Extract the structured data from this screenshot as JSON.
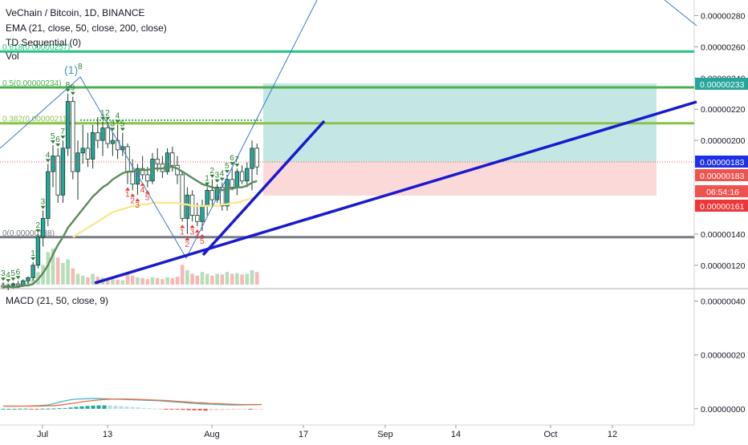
{
  "header": {
    "symbol": "VeChain / Bitcoin, 1D, BINANCE",
    "ema": "EMA (21, close, 50, close, 200, close)",
    "td": "TD Sequential (0)",
    "vol": "Vol",
    "macd": "MACD (21, 50, close, 9)"
  },
  "colors": {
    "up": "#26a69a",
    "down": "#ef5350",
    "ema21": "#5b8a5b",
    "ema50": "#f7e98e",
    "fib_green": "#4caf50",
    "fib_top": "#26c281",
    "trendline": "#1a1acd",
    "macd_line": "#3fb8c8",
    "signal_line": "#f06a3c",
    "profit_zone": "#b2dfdb",
    "loss_zone": "#fcd5d5",
    "price_badge": "#1e2fe8",
    "target_badge": "#26a69a",
    "stop_badge": "#ef3535"
  },
  "price_axis": {
    "ticks": [
      "0.00000280",
      "0.00000260",
      "0.00000240",
      "0.00000220",
      "0.00000200",
      "0.00000140",
      "0.00000120"
    ],
    "badges": {
      "target": "0.00000233",
      "last": "0.00000183",
      "entry": "0.00000183",
      "countdown": "06:54:16",
      "stop": "0.00000161"
    }
  },
  "macd_axis": {
    "ticks": [
      "0.00000040",
      "0.00000020",
      "0.00000000"
    ]
  },
  "time_axis": {
    "labels": [
      "Jul",
      "13",
      "Aug",
      "17",
      "Sep",
      "14",
      "Oct",
      "12"
    ]
  },
  "fib_levels": [
    {
      "label": "0.618(0.00000257)",
      "value": 2.57e-06
    },
    {
      "label": "0.5(0.00000234)",
      "value": 2.34e-06
    },
    {
      "label": "0.382(0.00000211)",
      "value": 2.11e-06
    },
    {
      "label": "0(0.00000138)",
      "value": 1.38e-06
    }
  ],
  "td_markers": {
    "peak_label": "(1)",
    "peak_count": "8",
    "up_counts": [
      "3",
      "4",
      "5",
      "6",
      "1",
      "2",
      "3",
      "4",
      "5",
      "6",
      "7",
      "8",
      "9",
      "1",
      "2",
      "3",
      "4",
      "5",
      "1",
      "2",
      "3",
      "4",
      "5",
      "6",
      "7"
    ],
    "down_counts": [
      "1",
      "2",
      "3",
      "4",
      "5",
      "1",
      "2",
      "3",
      "4",
      "5"
    ]
  },
  "chart_data": {
    "type": "candlestick",
    "symbol": "VET/BTC",
    "interval": "1D",
    "exchange": "BINANCE",
    "price_range": [
      1.05e-06,
      2.9e-06
    ],
    "last_price": 1.83e-06,
    "position_tool": {
      "entry": 1.83e-06,
      "target": 2.33e-06,
      "stop": 1.61e-06
    },
    "candles": [
      {
        "o": 1.07e-06,
        "h": 1.09e-06,
        "l": 1.05e-06,
        "c": 1.06e-06
      },
      {
        "o": 1.06e-06,
        "h": 1.08e-06,
        "l": 1.04e-06,
        "c": 1.07e-06
      },
      {
        "o": 1.07e-06,
        "h": 1.09e-06,
        "l": 1.05e-06,
        "c": 1.08e-06
      },
      {
        "o": 1.08e-06,
        "h": 1.1e-06,
        "l": 1.06e-06,
        "c": 1.07e-06
      },
      {
        "o": 1.07e-06,
        "h": 1.11e-06,
        "l": 1.06e-06,
        "c": 1.1e-06
      },
      {
        "o": 1.1e-06,
        "h": 1.13e-06,
        "l": 1.08e-06,
        "c": 1.12e-06
      },
      {
        "o": 1.12e-06,
        "h": 1.22e-06,
        "l": 1.1e-06,
        "c": 1.2e-06
      },
      {
        "o": 1.2e-06,
        "h": 1.4e-06,
        "l": 1.18e-06,
        "c": 1.38e-06
      },
      {
        "o": 1.38e-06,
        "h": 1.55e-06,
        "l": 1.32e-06,
        "c": 1.5e-06
      },
      {
        "o": 1.5e-06,
        "h": 1.85e-06,
        "l": 1.45e-06,
        "c": 1.8e-06
      },
      {
        "o": 1.8e-06,
        "h": 1.97e-06,
        "l": 1.7e-06,
        "c": 1.9e-06
      },
      {
        "o": 1.9e-06,
        "h": 1.95e-06,
        "l": 1.6e-06,
        "c": 1.65e-06
      },
      {
        "o": 1.65e-06,
        "h": 2e-06,
        "l": 1.6e-06,
        "c": 1.95e-06
      },
      {
        "o": 1.95e-06,
        "h": 2.3e-06,
        "l": 1.9e-06,
        "c": 2.25e-06
      },
      {
        "o": 2.25e-06,
        "h": 2.28e-06,
        "l": 1.75e-06,
        "c": 1.8e-06
      },
      {
        "o": 1.8e-06,
        "h": 2e-06,
        "l": 1.62e-06,
        "c": 1.92e-06
      },
      {
        "o": 1.92e-06,
        "h": 2.1e-06,
        "l": 1.85e-06,
        "c": 1.95e-06
      },
      {
        "o": 1.95e-06,
        "h": 2.05e-06,
        "l": 1.83e-06,
        "c": 1.88e-06
      },
      {
        "o": 1.88e-06,
        "h": 2.1e-06,
        "l": 1.82e-06,
        "c": 2.05e-06
      },
      {
        "o": 2.05e-06,
        "h": 2.15e-06,
        "l": 1.95e-06,
        "c": 2e-06
      },
      {
        "o": 2e-06,
        "h": 2.12e-06,
        "l": 1.9e-06,
        "c": 2.08e-06
      },
      {
        "o": 2.08e-06,
        "h": 2.12e-06,
        "l": 1.95e-06,
        "c": 1.98e-06
      },
      {
        "o": 1.98e-06,
        "h": 2.05e-06,
        "l": 1.9e-06,
        "c": 2e-06
      },
      {
        "o": 2e-06,
        "h": 2.1e-06,
        "l": 1.88e-06,
        "c": 1.94e-06
      },
      {
        "o": 1.94e-06,
        "h": 2.05e-06,
        "l": 1.9e-06,
        "c": 1.96e-06
      },
      {
        "o": 1.96e-06,
        "h": 1.98e-06,
        "l": 1.72e-06,
        "c": 1.8e-06
      },
      {
        "o": 1.8e-06,
        "h": 1.88e-06,
        "l": 1.68e-06,
        "c": 1.72e-06
      },
      {
        "o": 1.72e-06,
        "h": 1.85e-06,
        "l": 1.65e-06,
        "c": 1.82e-06
      },
      {
        "o": 1.82e-06,
        "h": 1.9e-06,
        "l": 1.75e-06,
        "c": 1.78e-06
      },
      {
        "o": 1.78e-06,
        "h": 1.83e-06,
        "l": 1.7e-06,
        "c": 1.74e-06
      },
      {
        "o": 1.74e-06,
        "h": 1.92e-06,
        "l": 1.72e-06,
        "c": 1.88e-06
      },
      {
        "o": 1.88e-06,
        "h": 1.95e-06,
        "l": 1.8e-06,
        "c": 1.85e-06
      },
      {
        "o": 1.85e-06,
        "h": 1.9e-06,
        "l": 1.76e-06,
        "c": 1.8e-06
      },
      {
        "o": 1.8e-06,
        "h": 1.95e-06,
        "l": 1.78e-06,
        "c": 1.92e-06
      },
      {
        "o": 1.92e-06,
        "h": 1.96e-06,
        "l": 1.8e-06,
        "c": 1.84e-06
      },
      {
        "o": 1.84e-06,
        "h": 1.9e-06,
        "l": 1.72e-06,
        "c": 1.78e-06
      },
      {
        "o": 1.78e-06,
        "h": 1.8e-06,
        "l": 1.48e-06,
        "c": 1.5e-06
      },
      {
        "o": 1.5e-06,
        "h": 1.7e-06,
        "l": 1.4e-06,
        "c": 1.65e-06
      },
      {
        "o": 1.65e-06,
        "h": 1.68e-06,
        "l": 1.48e-06,
        "c": 1.52e-06
      },
      {
        "o": 1.52e-06,
        "h": 1.6e-06,
        "l": 1.45e-06,
        "c": 1.48e-06
      },
      {
        "o": 1.48e-06,
        "h": 1.62e-06,
        "l": 1.42e-06,
        "c": 1.58e-06
      },
      {
        "o": 1.58e-06,
        "h": 1.7e-06,
        "l": 1.52e-06,
        "c": 1.68e-06
      },
      {
        "o": 1.68e-06,
        "h": 1.75e-06,
        "l": 1.58e-06,
        "c": 1.62e-06
      },
      {
        "o": 1.62e-06,
        "h": 1.72e-06,
        "l": 1.6e-06,
        "c": 1.7e-06
      },
      {
        "o": 1.7e-06,
        "h": 1.73e-06,
        "l": 1.55e-06,
        "c": 1.58e-06
      },
      {
        "o": 1.58e-06,
        "h": 1.78e-06,
        "l": 1.55e-06,
        "c": 1.75e-06
      },
      {
        "o": 1.75e-06,
        "h": 1.83e-06,
        "l": 1.68e-06,
        "c": 1.7e-06
      },
      {
        "o": 1.7e-06,
        "h": 1.82e-06,
        "l": 1.65e-06,
        "c": 1.8e-06
      },
      {
        "o": 1.8e-06,
        "h": 1.84e-06,
        "l": 1.72e-06,
        "c": 1.74e-06
      },
      {
        "o": 1.74e-06,
        "h": 1.86e-06,
        "l": 1.7e-06,
        "c": 1.82e-06
      },
      {
        "o": 1.82e-06,
        "h": 2e-06,
        "l": 1.68e-06,
        "c": 1.95e-06
      },
      {
        "o": 1.95e-06,
        "h": 1.98e-06,
        "l": 1.78e-06,
        "c": 1.83e-06
      }
    ],
    "ema21": [
      1.06e-06,
      1.06e-06,
      1.06e-06,
      1.06e-06,
      1.07e-06,
      1.07e-06,
      1.08e-06,
      1.11e-06,
      1.15e-06,
      1.2e-06,
      1.27e-06,
      1.33e-06,
      1.38e-06,
      1.44e-06,
      1.48e-06,
      1.52e-06,
      1.56e-06,
      1.6e-06,
      1.64e-06,
      1.67e-06,
      1.7e-06,
      1.72e-06,
      1.75e-06,
      1.77e-06,
      1.79e-06,
      1.8e-06,
      1.8e-06,
      1.81e-06,
      1.81e-06,
      1.81e-06,
      1.82e-06,
      1.82e-06,
      1.82e-06,
      1.83e-06,
      1.83e-06,
      1.82e-06,
      1.8e-06,
      1.78e-06,
      1.76e-06,
      1.74e-06,
      1.72e-06,
      1.71e-06,
      1.7e-06,
      1.69e-06,
      1.68e-06,
      1.69e-06,
      1.69e-06,
      1.7e-06,
      1.7e-06,
      1.71e-06,
      1.73e-06,
      1.74e-06
    ],
    "ema50_visible_from": 14,
    "ema50": [
      1.38e-06,
      1.4e-06,
      1.42e-06,
      1.44e-06,
      1.46e-06,
      1.48e-06,
      1.5e-06,
      1.52e-06,
      1.54e-06,
      1.55e-06,
      1.56e-06,
      1.57e-06,
      1.58e-06,
      1.58e-06,
      1.59e-06,
      1.59e-06,
      1.6e-06,
      1.6e-06,
      1.6e-06,
      1.6e-06,
      1.6e-06,
      1.6e-06,
      1.59e-06,
      1.59e-06,
      1.58e-06,
      1.58e-06,
      1.58e-06,
      1.58e-06,
      1.58e-06,
      1.58e-06,
      1.59e-06,
      1.59e-06,
      1.6e-06,
      1.6e-06,
      1.61e-06,
      1.62e-06,
      1.63e-06,
      1.64e-06
    ],
    "volume_relative": [
      0.05,
      0.04,
      0.05,
      0.04,
      0.06,
      0.08,
      0.15,
      0.35,
      0.55,
      0.9,
      1.0,
      0.75,
      0.6,
      0.7,
      0.45,
      0.3,
      0.25,
      0.2,
      0.3,
      0.22,
      0.2,
      0.18,
      0.15,
      0.14,
      0.12,
      0.3,
      0.25,
      0.2,
      0.18,
      0.15,
      0.2,
      0.18,
      0.15,
      0.2,
      0.18,
      0.22,
      0.55,
      0.4,
      0.3,
      0.25,
      0.35,
      0.3,
      0.25,
      0.3,
      0.28,
      0.35,
      0.3,
      0.32,
      0.28,
      0.3,
      0.4,
      0.35
    ],
    "macd": {
      "range": [
        -6e-08,
        4.4e-07
      ],
      "macd_line": [
        1e-08,
        1e-08,
        1e-08,
        1e-08,
        1.1e-08,
        1.2e-08,
        1.4e-08,
        2e-08,
        2.7e-08,
        3.3e-08,
        3.6e-08,
        3.7e-08,
        3.8e-08,
        3.8e-08,
        3.7e-08,
        3.6e-08,
        3.5e-08,
        3.4e-08,
        3.3e-08,
        3.2e-08,
        3.1e-08,
        3e-08,
        2.8e-08,
        2.6e-08,
        2.4e-08,
        2.2e-08,
        2e-08,
        1.8e-08,
        1.7e-08,
        1.6e-08,
        1.5e-08,
        1.4e-08,
        1.4e-08,
        1.5e-08,
        1.5e-08,
        1.6e-08
      ],
      "signal_line": [
        1e-08,
        1e-08,
        1e-08,
        1e-08,
        1e-08,
        1e-08,
        1.1e-08,
        1.2e-08,
        1.5e-08,
        1.9e-08,
        2.3e-08,
        2.7e-08,
        3e-08,
        3.3e-08,
        3.5e-08,
        3.6e-08,
        3.6e-08,
        3.6e-08,
        3.5e-08,
        3.4e-08,
        3.3e-08,
        3.2e-08,
        3.1e-08,
        2.9e-08,
        2.7e-08,
        2.5e-08,
        2.3e-08,
        2.2e-08,
        2e-08,
        1.9e-08,
        1.8e-08,
        1.7e-08,
        1.6e-08,
        1.6e-08,
        1.6e-08,
        1.6e-08
      ],
      "histogram": [
        0.0,
        0.0,
        0.0,
        5e-10,
        8e-10,
        -7e-10,
        -7e-10,
        6e-10,
        8e-10,
        1.2e-09,
        2e-09,
        3e-09,
        5e-09,
        7e-09,
        9e-09,
        1.05e-08,
        1.2e-08,
        1.25e-08,
        1.25e-08,
        1.2e-08,
        1.1e-08,
        9.5e-09,
        8e-09,
        6.5e-09,
        5e-09,
        3.5e-09,
        2e-09,
        1e-09,
        5e-10,
        -1e-09,
        -2e-09,
        -3e-09,
        -4e-09,
        -5e-09,
        -5.5e-09,
        -6e-09,
        -7e-09,
        -6e-09,
        -5.5e-09,
        -5e-09,
        -4.5e-09,
        -4e-09,
        -3.5e-09,
        -3e-09,
        -3e-09,
        -2.5e-09,
        -2e-09
      ]
    }
  }
}
